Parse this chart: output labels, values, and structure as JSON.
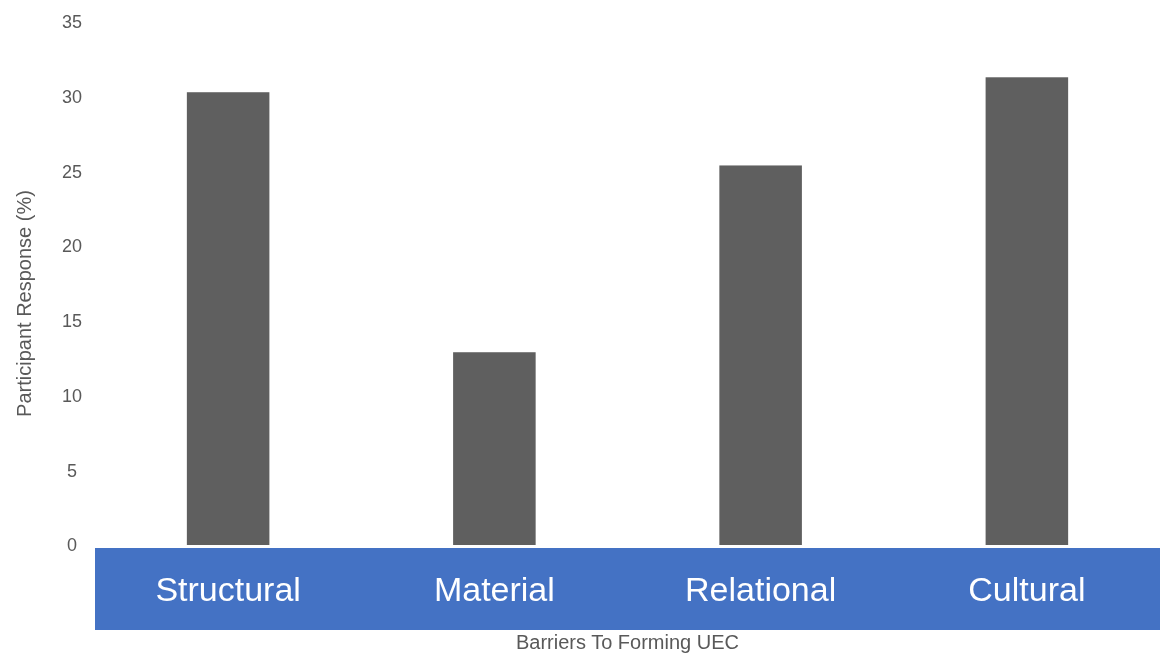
{
  "chart_data": {
    "type": "bar",
    "xlabel": "Barriers To Forming UEC",
    "ylabel": "Participant Response (%)",
    "categories": [
      "Structural",
      "Material",
      "Relational",
      "Cultural"
    ],
    "values": [
      30.3,
      12.9,
      25.4,
      31.3
    ],
    "color": "#5f5f5f",
    "ylim": [
      0,
      35
    ],
    "yticks": [
      0,
      5,
      10,
      15,
      20,
      25,
      30,
      35
    ],
    "grid": false
  }
}
